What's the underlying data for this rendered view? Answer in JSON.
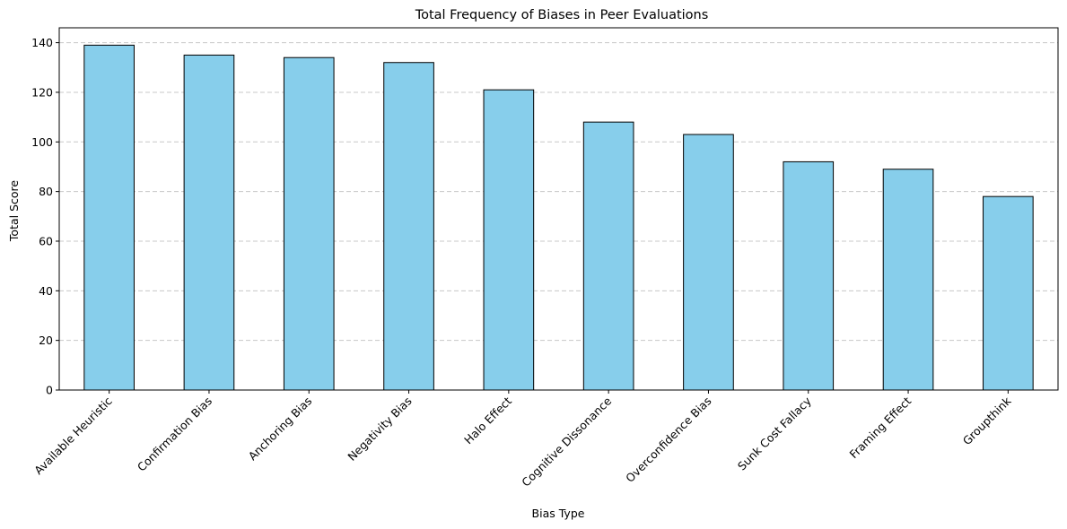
{
  "chart_data": {
    "type": "bar",
    "title": "Total Frequency of Biases in Peer Evaluations",
    "xlabel": "Bias Type",
    "ylabel": "Total Score",
    "categories": [
      "Available Heuristic",
      "Confirmation Bias",
      "Anchoring Bias",
      "Negativity Bias",
      "Halo Effect",
      "Cognitive Dissonance",
      "Overconfidence Bias",
      "Sunk Cost Fallacy",
      "Framing Effect",
      "Groupthink"
    ],
    "values": [
      139,
      135,
      134,
      132,
      121,
      108,
      103,
      92,
      89,
      78
    ],
    "ylim": [
      0,
      146
    ],
    "yticks": [
      0,
      20,
      40,
      60,
      80,
      100,
      120,
      140
    ],
    "grid": "y-dashed",
    "legend": "none",
    "colors": {
      "bar_fill": "#87CEEB",
      "bar_edge": "#000000",
      "grid": "#c8c8c8"
    }
  }
}
